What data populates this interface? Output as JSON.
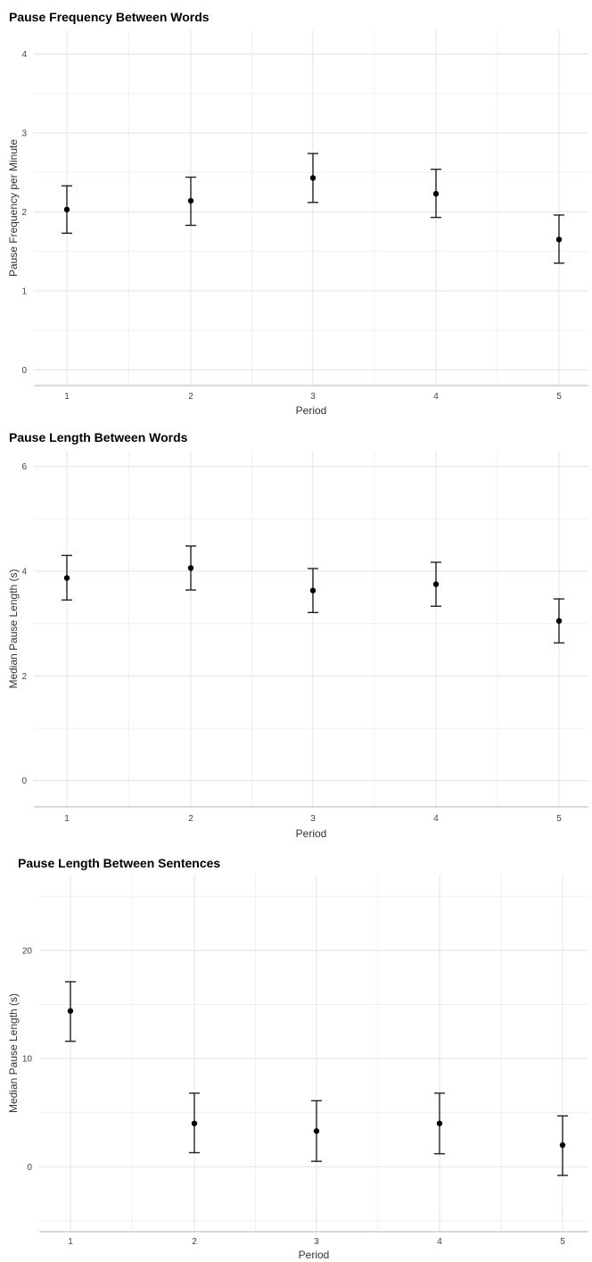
{
  "chart_data": [
    {
      "type": "scatter",
      "title": "Pause Frequency Between Words",
      "xlabel": "Period",
      "ylabel": "Pause Frequency per Minute",
      "categories": [
        "1",
        "2",
        "3",
        "4",
        "5"
      ],
      "yticks": [
        "0",
        "1",
        "2",
        "3",
        "4"
      ],
      "ylim": [
        -0.2,
        4.3
      ],
      "points": [
        {
          "x": "1",
          "y": 2.03,
          "lower": 1.73,
          "upper": 2.33
        },
        {
          "x": "2",
          "y": 2.14,
          "lower": 1.83,
          "upper": 2.44
        },
        {
          "x": "3",
          "y": 2.43,
          "lower": 2.12,
          "upper": 2.74
        },
        {
          "x": "4",
          "y": 2.23,
          "lower": 1.93,
          "upper": 2.54
        },
        {
          "x": "5",
          "y": 1.65,
          "lower": 1.35,
          "upper": 1.96
        }
      ],
      "grid": true
    },
    {
      "type": "scatter",
      "title": "Pause Length Between Words",
      "xlabel": "Period",
      "ylabel": "Median Pause Length (s)",
      "categories": [
        "1",
        "2",
        "3",
        "4",
        "5"
      ],
      "yticks": [
        "0",
        "2",
        "4",
        "6"
      ],
      "ylim": [
        -0.5,
        6.3
      ],
      "points": [
        {
          "x": "1",
          "y": 3.87,
          "lower": 3.45,
          "upper": 4.3
        },
        {
          "x": "2",
          "y": 4.06,
          "lower": 3.64,
          "upper": 4.48
        },
        {
          "x": "3",
          "y": 3.63,
          "lower": 3.21,
          "upper": 4.05
        },
        {
          "x": "4",
          "y": 3.75,
          "lower": 3.33,
          "upper": 4.17
        },
        {
          "x": "5",
          "y": 3.05,
          "lower": 2.63,
          "upper": 3.47
        }
      ],
      "grid": true
    },
    {
      "type": "scatter",
      "title": "Pause Length Between Sentences",
      "xlabel": "Period",
      "ylabel": "Median Pause Length (s)",
      "categories": [
        "1",
        "2",
        "3",
        "4",
        "5"
      ],
      "yticks": [
        "0",
        "10",
        "20"
      ],
      "ylim": [
        -6,
        27
      ],
      "points": [
        {
          "x": "1",
          "y": 14.4,
          "lower": 11.6,
          "upper": 17.1
        },
        {
          "x": "2",
          "y": 4.0,
          "lower": 1.3,
          "upper": 6.8
        },
        {
          "x": "3",
          "y": 3.3,
          "lower": 0.5,
          "upper": 6.1
        },
        {
          "x": "4",
          "y": 4.0,
          "lower": 1.2,
          "upper": 6.8
        },
        {
          "x": "5",
          "y": 2.0,
          "lower": -0.8,
          "upper": 4.7
        }
      ],
      "grid": true
    }
  ]
}
